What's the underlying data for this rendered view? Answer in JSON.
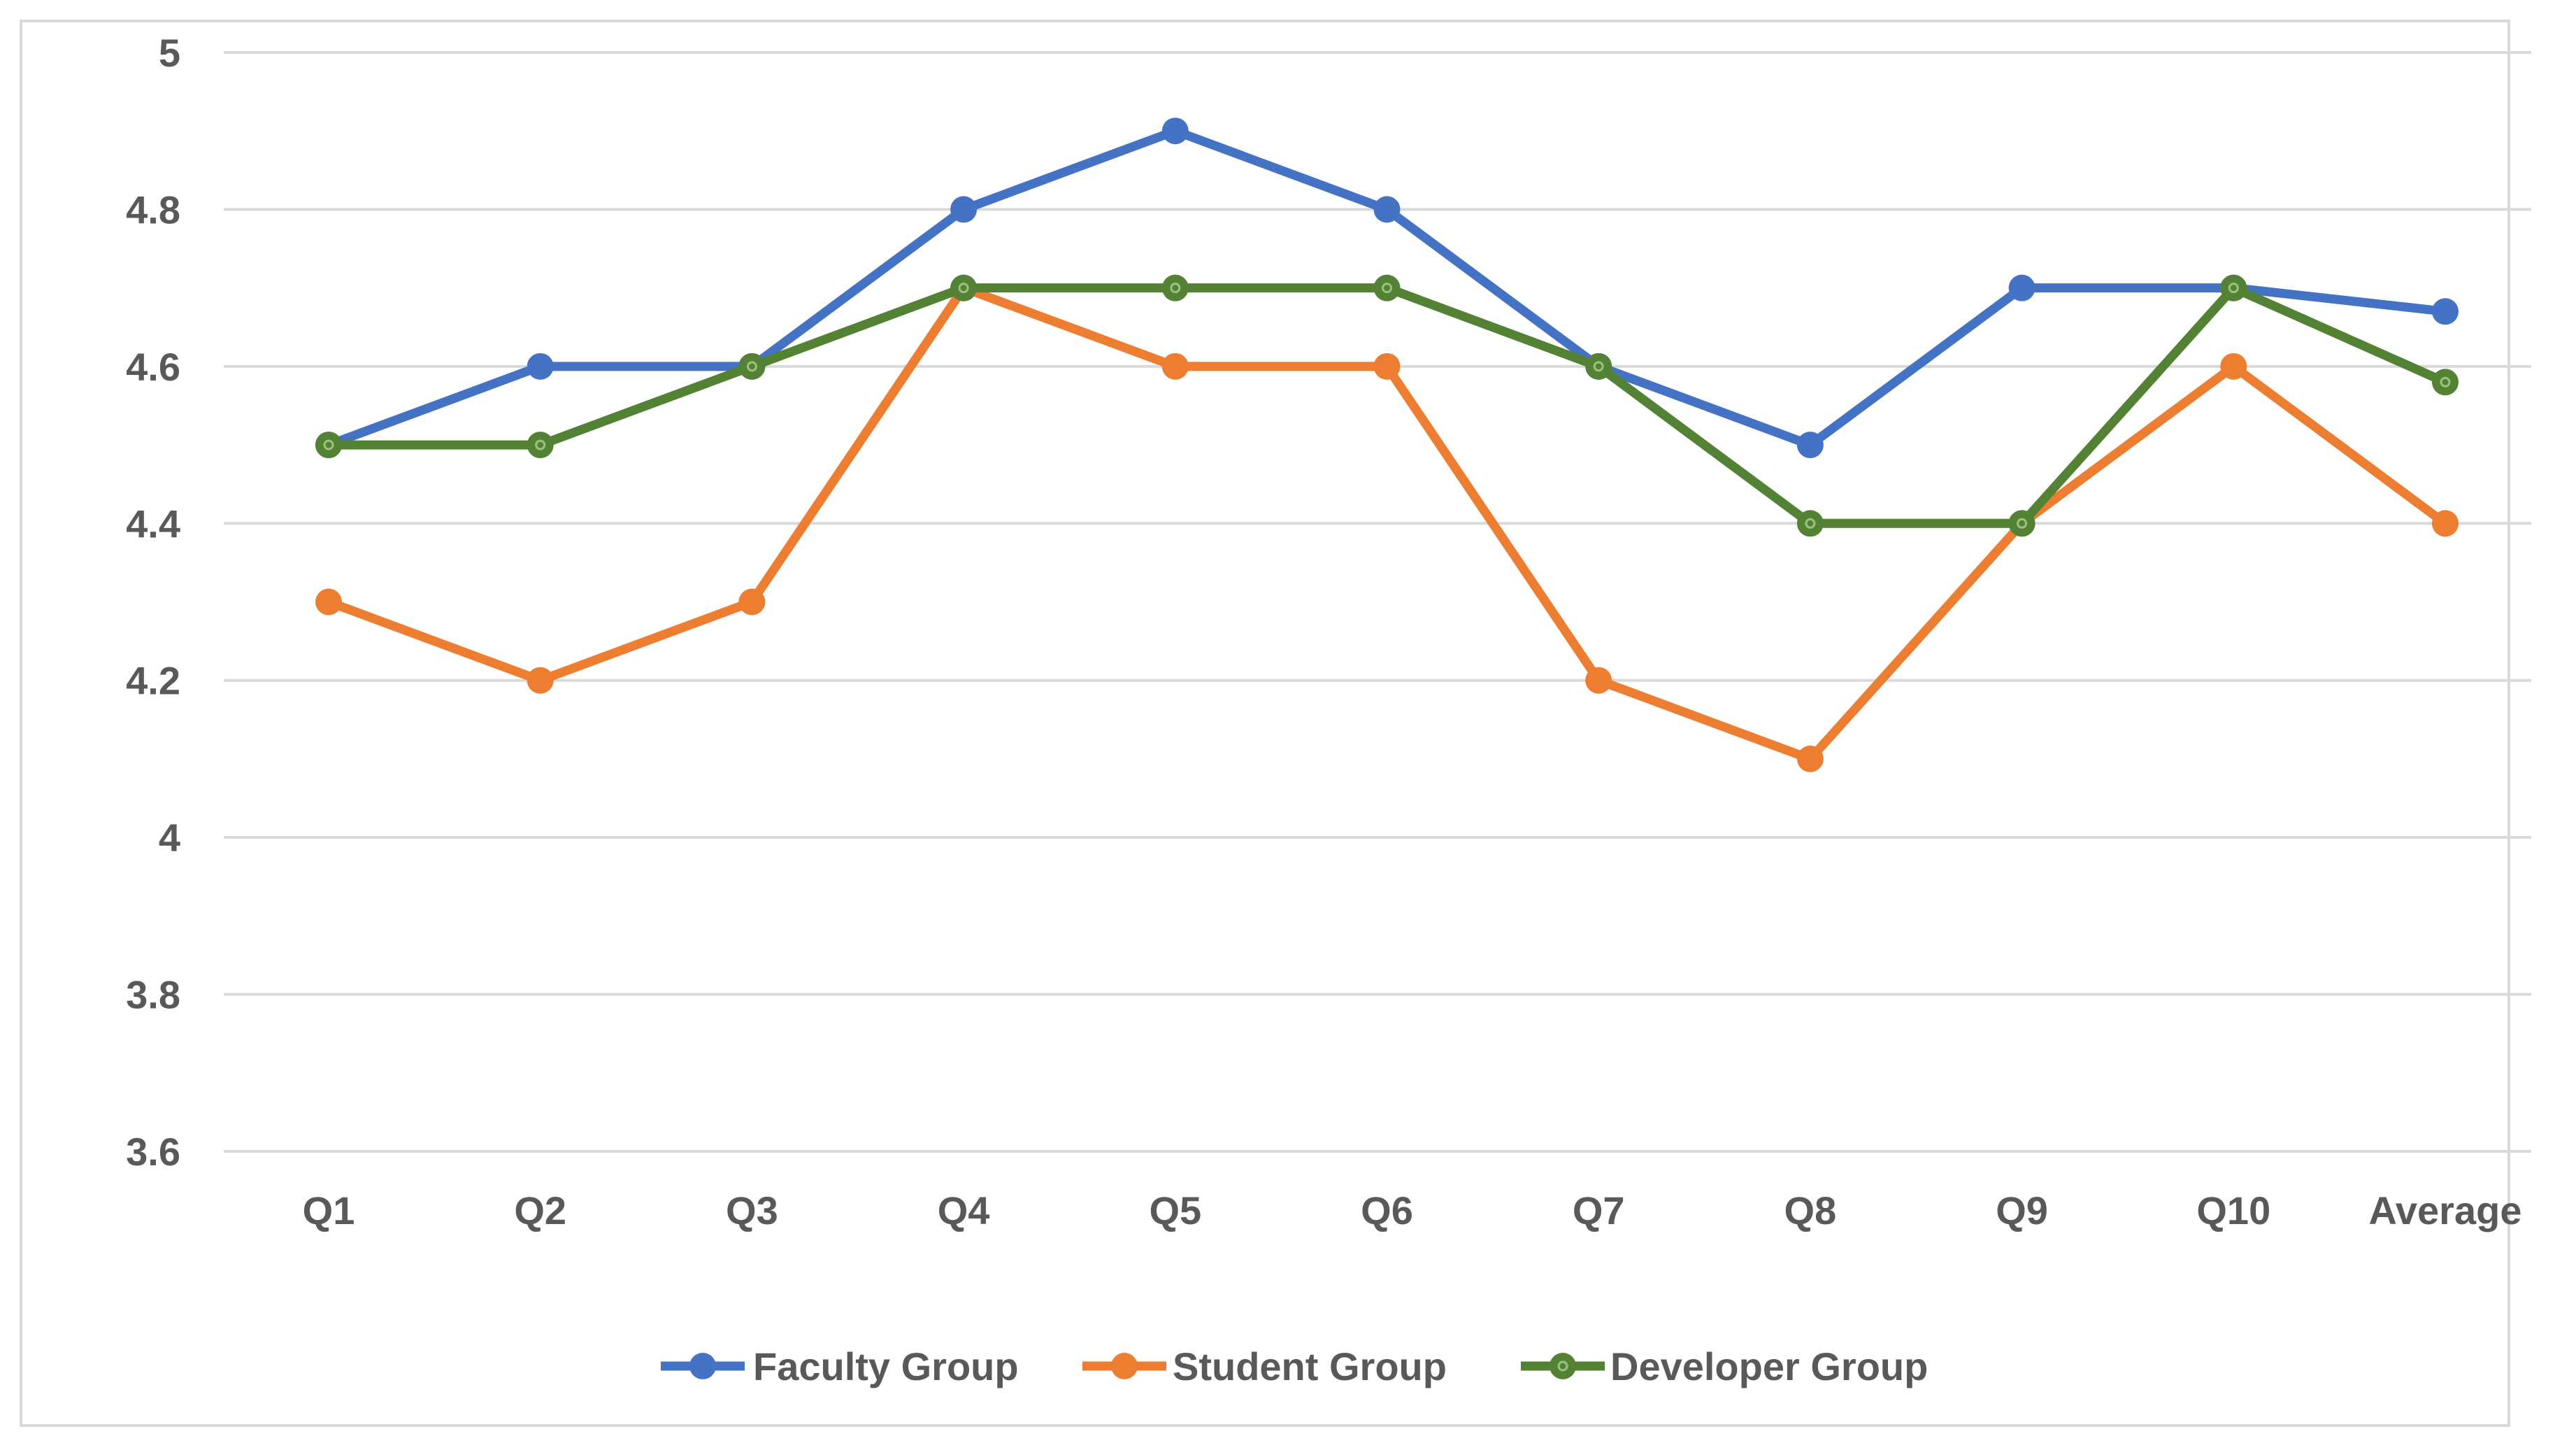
{
  "chart_data": {
    "type": "line",
    "title": "",
    "xlabel": "",
    "ylabel": "",
    "categories": [
      "Q1",
      "Q2",
      "Q3",
      "Q4",
      "Q5",
      "Q6",
      "Q7",
      "Q8",
      "Q9",
      "Q10",
      "Average"
    ],
    "ylim": [
      3.6,
      5
    ],
    "ytick_values": [
      3.6,
      3.8,
      4,
      4.2,
      4.4,
      4.6,
      4.8,
      5
    ],
    "ytick_labels": [
      "3.6",
      "3.8",
      "4",
      "4.2",
      "4.4",
      "4.6",
      "4.8",
      "5"
    ],
    "grid": true,
    "legend_position": "bottom",
    "series": [
      {
        "name": "Faculty Group",
        "color": "#4472C4",
        "values": [
          4.5,
          4.6,
          4.6,
          4.8,
          4.9,
          4.8,
          4.6,
          4.5,
          4.7,
          4.7,
          4.67
        ]
      },
      {
        "name": "Student Group",
        "color": "#ED7D31",
        "values": [
          4.3,
          4.2,
          4.3,
          4.7,
          4.6,
          4.6,
          4.2,
          4.1,
          4.4,
          4.6,
          4.4
        ]
      },
      {
        "name": "Developer Group",
        "color": "#548235",
        "values": [
          4.5,
          4.5,
          4.6,
          4.7,
          4.7,
          4.7,
          4.6,
          4.4,
          4.4,
          4.7,
          4.58
        ]
      }
    ]
  }
}
